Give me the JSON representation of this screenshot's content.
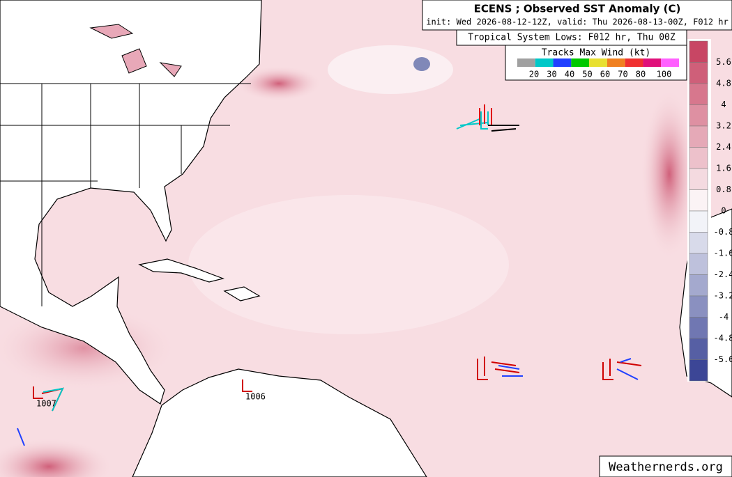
{
  "header": {
    "title": "ECENS ; Observed SST Anomaly (C)",
    "subtitle": "init: Wed 2026-08-12-12Z, valid: Thu 2026-08-13-00Z, F012 hr"
  },
  "lows_label": "Tropical System Lows: F012 hr, Thu 00Z",
  "wind_legend": {
    "title": "Tracks Max Wind (kt)",
    "labels": [
      20,
      30,
      40,
      50,
      60,
      70,
      80,
      100
    ],
    "colors": [
      "#a0a0a0",
      "#00c8c8",
      "#2040ff",
      "#00c800",
      "#e8e030",
      "#f08020",
      "#f03030",
      "#e0107a",
      "#ff60ff"
    ]
  },
  "colorbar": {
    "ticks": [
      5.6,
      4.8,
      4,
      3.2,
      2.4,
      1.6,
      0.8,
      0,
      -0.8,
      -1.6,
      -2.4,
      -3.2,
      -4,
      -4.8,
      -5.6
    ]
  },
  "lows": [
    {
      "label": "1007"
    },
    {
      "label": "1006"
    }
  ],
  "watermark": "Weathernerds.org"
}
